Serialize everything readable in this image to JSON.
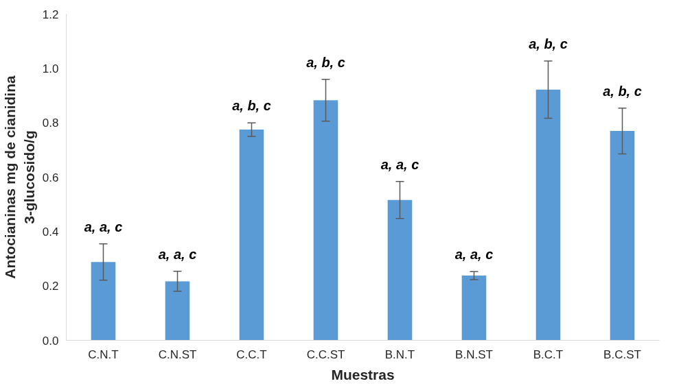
{
  "chart_data": {
    "type": "bar",
    "xlabel": "Muestras",
    "ylabel": "Antocianinas mg de cianidina 3-glucosido/g",
    "categories": [
      "C.N.T",
      "C.N.ST",
      "C.C.T",
      "C.C.ST",
      "B.N.T",
      "B.N.ST",
      "B.C.T",
      "B.C.ST"
    ],
    "values": [
      0.288,
      0.217,
      0.775,
      0.883,
      0.516,
      0.238,
      0.922,
      0.77
    ],
    "errors": [
      0.067,
      0.037,
      0.025,
      0.077,
      0.068,
      0.015,
      0.105,
      0.084
    ],
    "color": "#5b9bd5",
    "ylim": [
      0,
      1.2
    ],
    "yticks": [
      {
        "value": 0,
        "label": "0.0"
      },
      {
        "value": 0.2,
        "label": "0.2"
      },
      {
        "value": 0.4,
        "label": "0.4"
      },
      {
        "value": 0.6,
        "label": "0.6"
      },
      {
        "value": 0.8,
        "label": "0.8"
      },
      {
        "value": 1.0,
        "label": "1.0"
      },
      {
        "value": 1.2,
        "label": "1.2"
      }
    ],
    "grid": false,
    "annotations": [
      {
        "text": "a, a, c",
        "x": "C.N.T",
        "y": 0.288
      },
      {
        "text": "a, a, c",
        "x": "C.N.ST",
        "y": 0.217
      },
      {
        "text": "a, b, c",
        "x": "C.C.T",
        "y": 0.775
      },
      {
        "text": "a, b, c",
        "x": "C.C.ST",
        "y": 0.883
      },
      {
        "text": "a, a, c",
        "x": "B.N.T",
        "y": 0.516
      },
      {
        "text": "a, a, c",
        "x": "B.N.ST",
        "y": 0.238
      },
      {
        "text": "a, b, c",
        "x": "B.C.T",
        "y": 0.922
      },
      {
        "text": "a, b, c",
        "x": "B.C.ST",
        "y": 0.77
      }
    ]
  }
}
